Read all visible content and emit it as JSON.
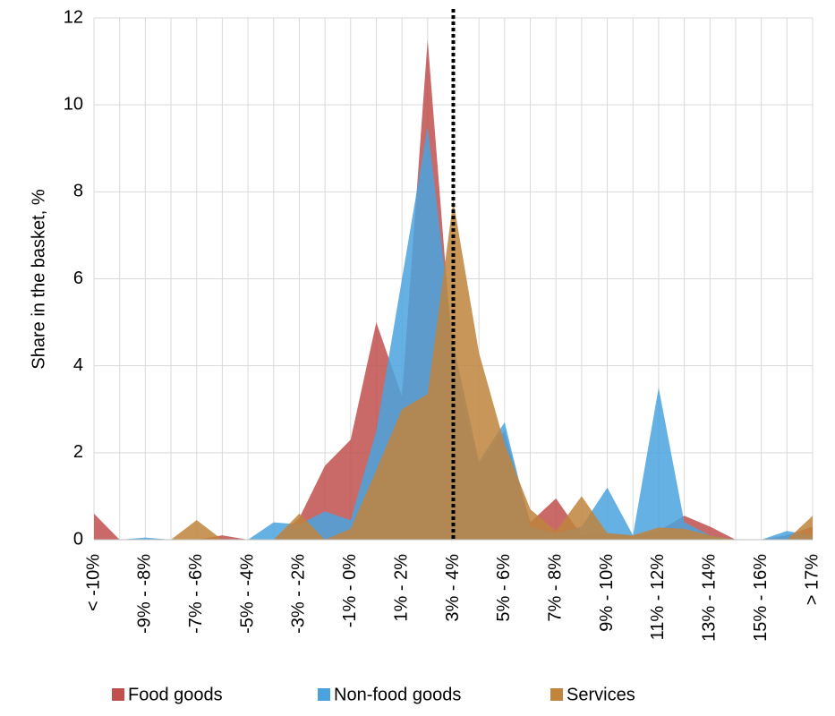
{
  "chart_data": {
    "type": "area",
    "y_label": "Share in the basket, %",
    "categories": [
      "< -10%",
      null,
      "-9% - -8%",
      null,
      "-7% - -6%",
      null,
      "-5% - -4%",
      null,
      "-3% - -2%",
      null,
      "-1% - 0%",
      null,
      "1% - 2%",
      null,
      "3% - 4%",
      null,
      "5% - 6%",
      null,
      "7% - 8%",
      null,
      "9% - 10%",
      null,
      "11% - 12%",
      null,
      "13% - 14%",
      null,
      "15% - 16%",
      null,
      "> 17%"
    ],
    "series": [
      {
        "name": "Food goods",
        "color": "#c0504d",
        "values": [
          0.6,
          0,
          0,
          0,
          0,
          0.1,
          0,
          0,
          0.5,
          1.7,
          2.3,
          5.0,
          3.3,
          11.5,
          4.0,
          1.7,
          2.5,
          0.4,
          0.95,
          0.1,
          0.15,
          0.1,
          0.2,
          0.55,
          0.3,
          0,
          0,
          0.1,
          0.3
        ]
      },
      {
        "name": "Non-food goods",
        "color": "#4aa3df",
        "values": [
          0,
          0,
          0.05,
          0,
          0,
          0,
          0,
          0.4,
          0.35,
          0.65,
          0.45,
          2.5,
          6.0,
          9.5,
          4.5,
          1.8,
          2.7,
          0.3,
          0.15,
          0.3,
          1.2,
          0.1,
          3.5,
          0.4,
          0.1,
          0,
          0,
          0.2,
          0.1
        ]
      },
      {
        "name": "Services",
        "color": "#c0843d",
        "values": [
          0,
          0,
          0,
          0,
          0.45,
          0,
          0,
          0,
          0.6,
          0,
          0.25,
          1.6,
          3.0,
          3.35,
          7.8,
          4.3,
          2.2,
          0.7,
          0.2,
          1.0,
          0.15,
          0.1,
          0.28,
          0.25,
          0.1,
          0,
          0,
          0,
          0.55
        ]
      }
    ],
    "ylim": [
      0,
      12
    ],
    "yticks": [
      0,
      2,
      4,
      6,
      8,
      10,
      12
    ],
    "grid": true,
    "vline_index": 14,
    "vline_color": "#000000",
    "opacity": 0.85,
    "legend": "bottom"
  }
}
